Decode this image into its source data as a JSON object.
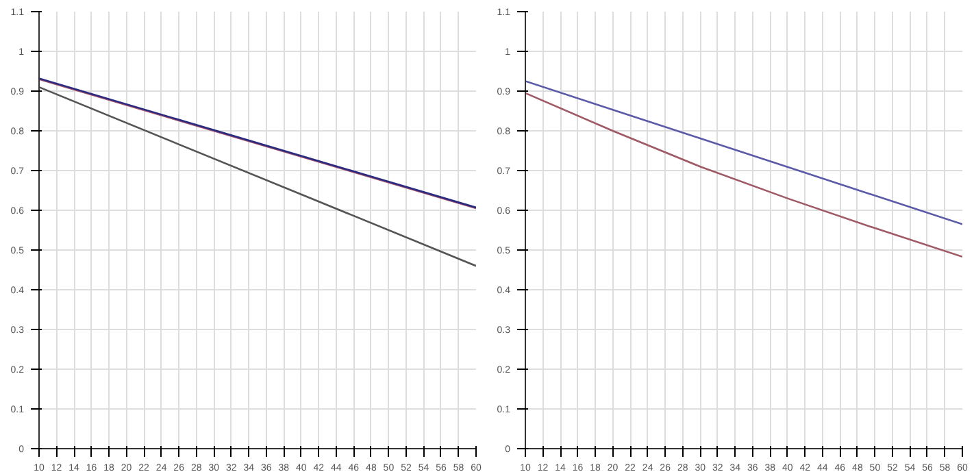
{
  "chart_data": [
    {
      "type": "line",
      "x": [
        10,
        60
      ],
      "xlim": [
        10,
        60
      ],
      "ylim": [
        0,
        1.1
      ],
      "xticks": [
        10,
        12,
        14,
        16,
        18,
        20,
        22,
        24,
        26,
        28,
        30,
        32,
        34,
        36,
        38,
        40,
        42,
        44,
        46,
        48,
        50,
        52,
        54,
        56,
        58,
        60
      ],
      "yticks": [
        0,
        0.1,
        0.2,
        0.3,
        0.4,
        0.5,
        0.6,
        0.7,
        0.8,
        0.9,
        1,
        1.1
      ],
      "grid": true,
      "series": [
        {
          "color": "#555555",
          "values": [
            0.91,
            0.46
          ]
        },
        {
          "color": "#a0506a",
          "values": [
            0.93,
            0.605
          ]
        },
        {
          "color": "#2a2a80",
          "values": [
            0.932,
            0.607
          ]
        }
      ]
    },
    {
      "type": "line",
      "x": [
        10,
        20,
        30,
        40,
        50,
        60
      ],
      "xlim": [
        10,
        60
      ],
      "ylim": [
        0,
        1.1
      ],
      "xticks": [
        10,
        12,
        14,
        16,
        18,
        20,
        22,
        24,
        26,
        28,
        30,
        32,
        34,
        36,
        38,
        40,
        42,
        44,
        46,
        48,
        50,
        52,
        54,
        56,
        58,
        60
      ],
      "yticks": [
        0,
        0.1,
        0.2,
        0.3,
        0.4,
        0.5,
        0.6,
        0.7,
        0.8,
        0.9,
        1,
        1.1
      ],
      "grid": true,
      "series": [
        {
          "color": "#5a5aa8",
          "values": [
            0.925,
            0.853,
            0.781,
            0.709,
            0.637,
            0.565
          ]
        },
        {
          "color": "#a05a66",
          "values": [
            0.895,
            0.8,
            0.71,
            0.63,
            0.555,
            0.483
          ]
        }
      ]
    }
  ]
}
